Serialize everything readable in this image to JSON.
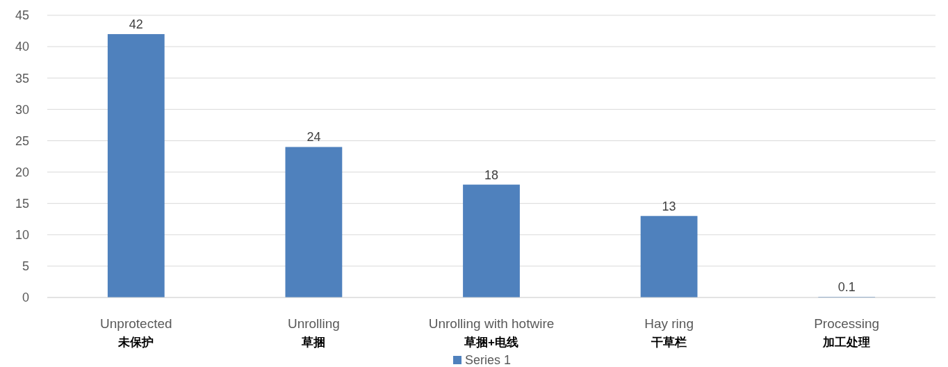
{
  "chart_data": {
    "type": "bar",
    "categories": [
      "Unprotected\n未保护",
      "Unrolling\n草捆",
      "Unrolling with hotwire\n草捆+电线",
      "Hay ring\n干草栏",
      "Processing\n加工处理"
    ],
    "series": [
      {
        "name": "Series 1",
        "color": "#4f81bd",
        "values": [
          42,
          24,
          18,
          13,
          0.1
        ]
      }
    ],
    "data_labels": true,
    "ylim": [
      0,
      45
    ],
    "yticks": [
      0,
      5,
      10,
      15,
      20,
      25,
      30,
      35,
      40,
      45
    ],
    "grid": "y",
    "legend": "bottom"
  }
}
